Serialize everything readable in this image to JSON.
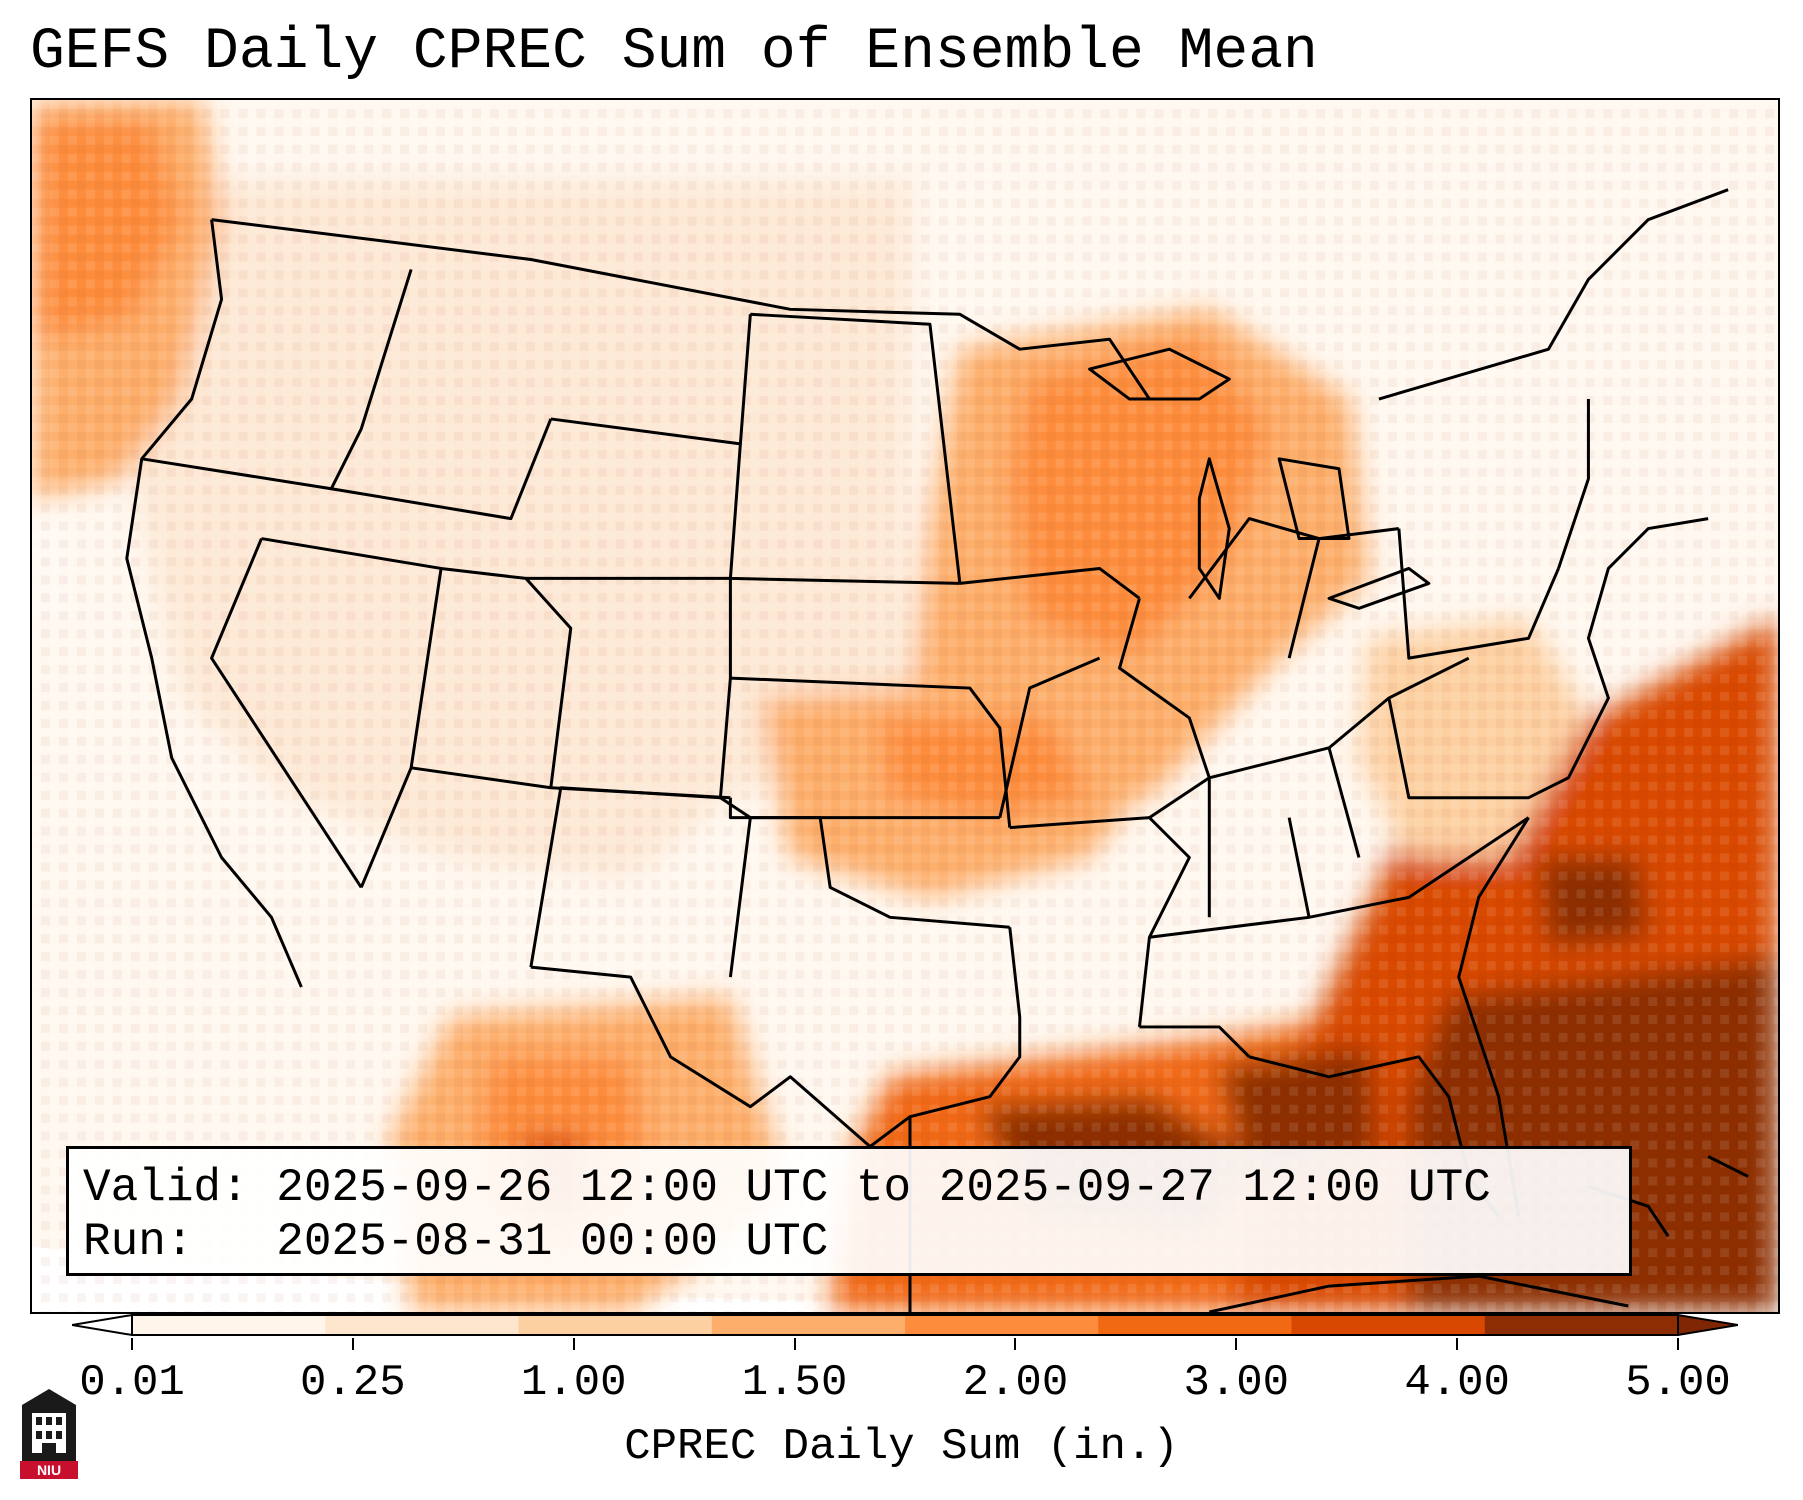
{
  "title": "GEFS Daily CPREC Sum of Ensemble Mean",
  "info": {
    "valid_label": "Valid:",
    "valid_value": "2025-09-26 12:00 UTC to 2025-09-27 12:00 UTC",
    "run_label": "Run:",
    "run_value": "2025-08-31 00:00 UTC"
  },
  "colorbar": {
    "label": "CPREC Daily Sum (in.)",
    "ticks": [
      "0.01",
      "0.25",
      "1.00",
      "1.50",
      "2.00",
      "3.00",
      "4.00",
      "5.00"
    ],
    "colors": [
      "#fff5eb",
      "#fee6ce",
      "#fdd0a2",
      "#fdae6b",
      "#fd8d3c",
      "#f16913",
      "#d94801",
      "#8c2d04"
    ],
    "under_color": "#ffffff",
    "over_color": "#7f2704"
  },
  "logo": {
    "text": "NIU",
    "color": "#c8102e"
  }
}
